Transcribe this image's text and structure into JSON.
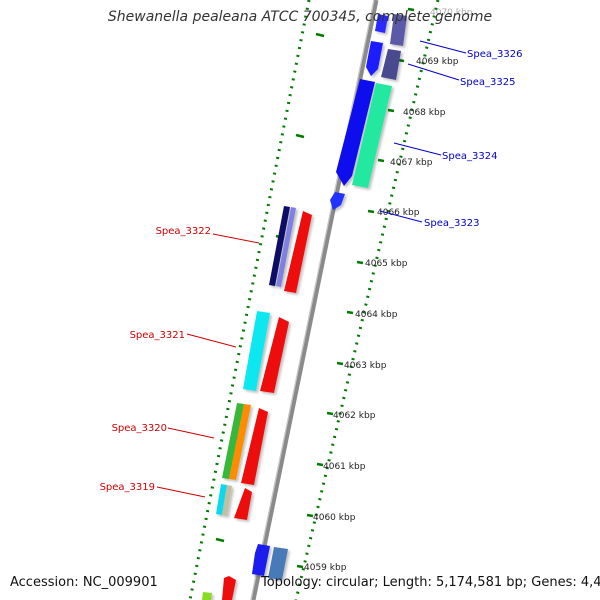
{
  "title": "Shewanella pealeana ATCC 700345, complete genome",
  "footer": {
    "accession": "Accession: NC_009901",
    "topology": "Topology: circular; Length: 5,174,581 bp; Genes: 4,420"
  },
  "colors": {
    "backbone": "#909090",
    "forward_label": "#0000cc",
    "reverse_label": "#cc0000",
    "dotted_track": "#007a00"
  },
  "kbp_ticks": [
    "4059 kbp",
    "4060 kbp",
    "4061 kbp",
    "4062 kbp",
    "4063 kbp",
    "4064 kbp",
    "4065 kbp",
    "4066 kbp",
    "4067 kbp",
    "4068 kbp",
    "4069 kbp",
    "4070 kbp"
  ],
  "gene_labels": [
    {
      "text": "Spea_3326",
      "strand": "forward"
    },
    {
      "text": "Spea_3325",
      "strand": "forward"
    },
    {
      "text": "Spea_3324",
      "strand": "forward"
    },
    {
      "text": "Spea_3323",
      "strand": "forward"
    },
    {
      "text": "Spea_3322",
      "strand": "reverse"
    },
    {
      "text": "Spea_3321",
      "strand": "reverse"
    },
    {
      "text": "Spea_3320",
      "strand": "reverse"
    },
    {
      "text": "Spea_3319",
      "strand": "reverse"
    }
  ]
}
